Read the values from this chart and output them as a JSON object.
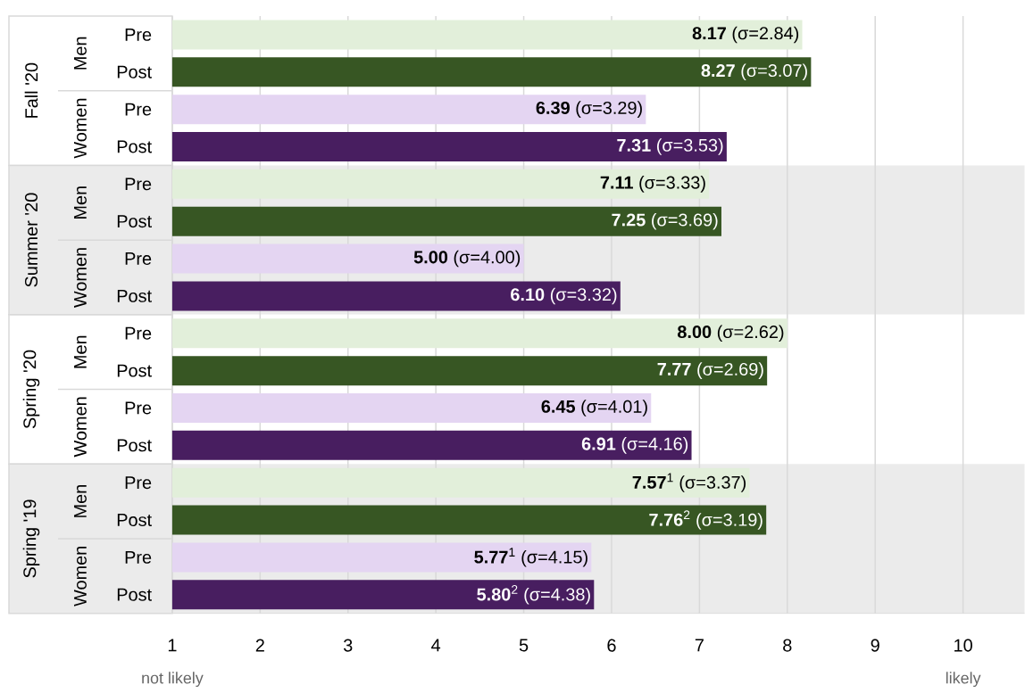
{
  "chart_data": {
    "type": "bar",
    "orientation": "horizontal",
    "categories": [
      "Pre",
      "Post",
      "Pre",
      "Post",
      "Pre",
      "Post",
      "Pre",
      "Post",
      "Pre",
      "Post",
      "Pre",
      "Post",
      "Pre",
      "Post",
      "Pre",
      "Post"
    ],
    "values": [
      8.17,
      8.27,
      6.39,
      7.31,
      7.11,
      7.25,
      5.0,
      6.1,
      8.0,
      7.77,
      6.45,
      6.91,
      7.57,
      7.76,
      5.77,
      5.8
    ],
    "colors": [
      "#e2efda",
      "#375623",
      "#e4d5f2",
      "#481e60",
      "#e2efda",
      "#375623",
      "#e4d5f2",
      "#481e60",
      "#e2efda",
      "#375623",
      "#e4d5f2",
      "#481e60",
      "#e2efda",
      "#375623",
      "#e4d5f2",
      "#481e60"
    ],
    "value_labels": [
      "**8.17** (σ=2.84)",
      "**8.27** (σ=3.07)",
      "**6.39** (σ=3.29)",
      "**7.31** (σ=3.53)",
      "**7.11** (σ=3.33)",
      "**7.25** (σ=3.69)",
      "**5.00** (σ=4.00)",
      "**6.10** (σ=3.32)",
      "**8.00** (σ=2.62)",
      "**7.77** (σ=2.69)",
      "**6.45** (σ=4.01)",
      "**6.91** (σ=4.16)",
      "**7.57**$^{1}$ (σ=3.37)",
      "**7.76**$^{2}$ (σ=3.19)",
      "**5.77**$^{1}$ (σ=4.15)",
      "**5.80**$^{2}$ (σ=4.38)"
    ],
    "xlim": [
      1,
      10.7
    ],
    "xticks": [
      1,
      2,
      3,
      4,
      5,
      6,
      7,
      8,
      9,
      10
    ],
    "grid": "x",
    "annotations": [
      "Fall '20",
      "Men",
      "Women",
      "Summer '20",
      "Men",
      "Women",
      "Spring '20",
      "Men",
      "Women",
      "Spring '19",
      "Men",
      "Women",
      "not likely",
      "likely"
    ]
  }
}
